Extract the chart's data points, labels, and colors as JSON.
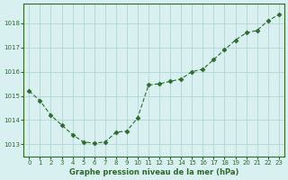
{
  "x": [
    0,
    1,
    2,
    3,
    4,
    5,
    6,
    7,
    8,
    9,
    10,
    11,
    12,
    13,
    14,
    15,
    16,
    17,
    18,
    19,
    20,
    21,
    22,
    23
  ],
  "y": [
    1015.2,
    1014.8,
    1014.2,
    1013.8,
    1013.4,
    1013.1,
    1013.05,
    1013.1,
    1013.5,
    1013.55,
    1014.1,
    1015.45,
    1015.5,
    1015.6,
    1015.7,
    1016.0,
    1016.1,
    1016.5,
    1016.9,
    1017.3,
    1017.6,
    1017.7,
    1018.1,
    1018.35
  ],
  "line_color": "#2d6a2d",
  "marker_color": "#2d6a2d",
  "bg_color": "#d8f0f0",
  "grid_color": "#aacfcf",
  "xlabel": "Graphe pression niveau de la mer (hPa)",
  "xlabel_color": "#2d6a2d",
  "tick_color": "#2d6a2d",
  "ylim": [
    1012.5,
    1018.8
  ],
  "yticks": [
    1013,
    1014,
    1015,
    1016,
    1017,
    1018
  ],
  "xticks": [
    0,
    1,
    2,
    3,
    4,
    5,
    6,
    7,
    8,
    9,
    10,
    11,
    12,
    13,
    14,
    15,
    16,
    17,
    18,
    19,
    20,
    21,
    22,
    23
  ]
}
